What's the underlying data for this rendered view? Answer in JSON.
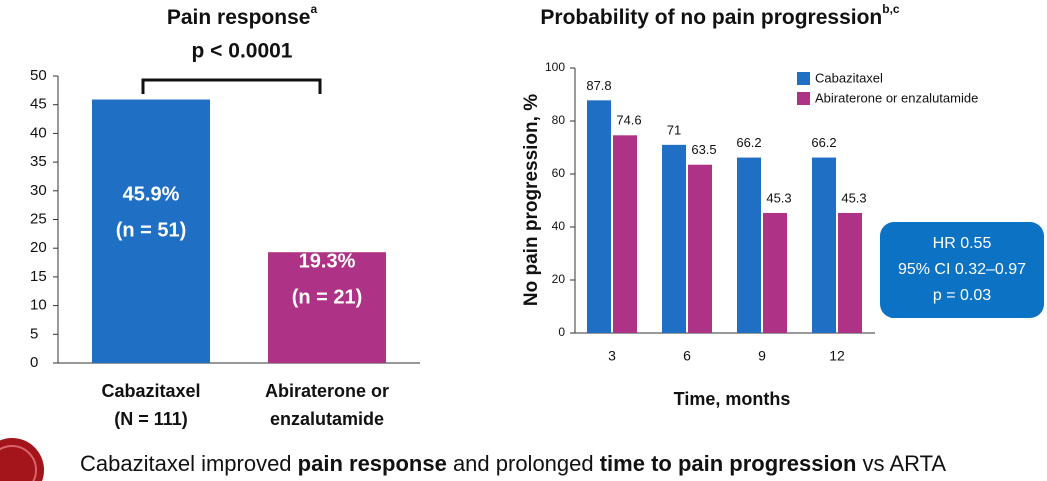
{
  "chart_data": [
    {
      "type": "bar",
      "title": "Pain response",
      "title_sup": "a",
      "subtitle": "p < 0.0001",
      "categories": [
        [
          "Cabazitaxel",
          "(N = 111)"
        ],
        [
          "Abiraterone or",
          "enzalutamide"
        ]
      ],
      "values": [
        45.9,
        19.3
      ],
      "value_labels": [
        "45.9%",
        "19.3%"
      ],
      "n_labels": [
        "(n = 51)",
        "(n = 21)"
      ],
      "colors": [
        "#1f6fc5",
        "#ae3285"
      ],
      "ylim": [
        0,
        50
      ],
      "yticks": [
        0,
        5,
        10,
        15,
        20,
        25,
        30,
        35,
        40,
        45,
        50
      ],
      "grid": false
    },
    {
      "type": "bar",
      "title": "Probability of no pain progression",
      "title_sup": "b,c",
      "y_label": "No pain progression, %",
      "x_label": "Time, months",
      "categories": [
        "3",
        "6",
        "9",
        "12"
      ],
      "series": [
        {
          "name": "Cabazitaxel",
          "color": "#1f6fc5",
          "values": [
            87.8,
            71,
            66.2,
            66.2
          ]
        },
        {
          "name": "Abiraterone or enzalutamide",
          "color": "#ae3285",
          "values": [
            74.6,
            63.5,
            45.3,
            45.3
          ]
        }
      ],
      "ylim": [
        0,
        100
      ],
      "yticks": [
        0,
        20,
        40,
        60,
        80,
        100
      ],
      "grid": false,
      "legend": "top-right",
      "annotation": [
        "HR 0.55",
        "95% CI 0.32–0.97",
        "p = 0.03"
      ]
    }
  ],
  "footer": [
    {
      "text": "Cabazitaxel improved ",
      "bold": false
    },
    {
      "text": "pain response",
      "bold": true
    },
    {
      "text": " and prolonged ",
      "bold": false
    },
    {
      "text": "time to pain progression",
      "bold": true
    },
    {
      "text": " vs ARTA",
      "bold": false
    }
  ]
}
